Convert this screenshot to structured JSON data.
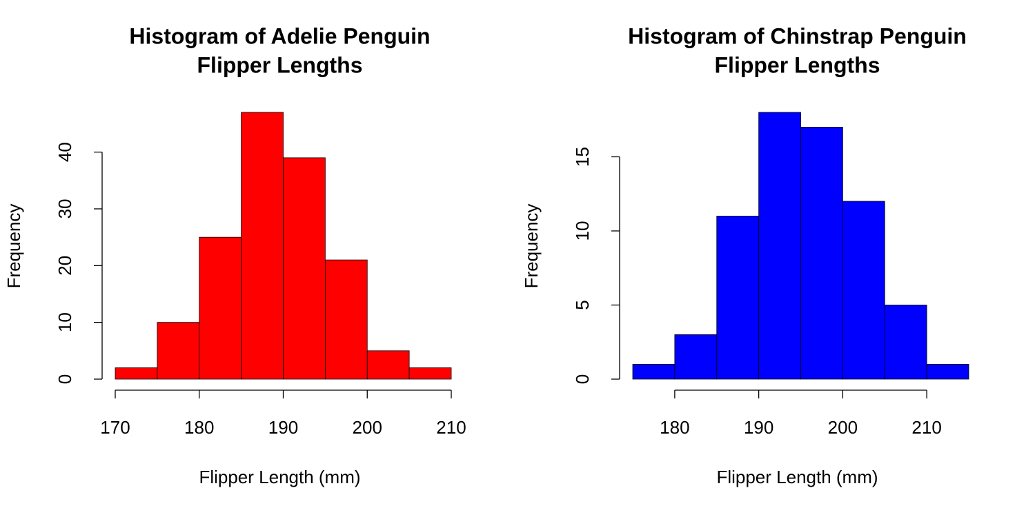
{
  "chart_data": [
    {
      "type": "histogram",
      "title": [
        "Histogram of Adelie Penguin",
        "Flipper Lengths"
      ],
      "xlabel": "Flipper Length (mm)",
      "ylabel": "Frequency",
      "bins": [
        170,
        175,
        180,
        185,
        190,
        195,
        200,
        205,
        210
      ],
      "values": [
        2,
        10,
        25,
        47,
        39,
        21,
        5,
        2
      ],
      "color": "#ff0000",
      "xlim": [
        170,
        210
      ],
      "ylim": [
        0,
        47
      ],
      "xticks": [
        170,
        180,
        190,
        200,
        210
      ],
      "yticks": [
        0,
        10,
        20,
        30,
        40
      ]
    },
    {
      "type": "histogram",
      "title": [
        "Histogram of Chinstrap Penguin",
        "Flipper Lengths"
      ],
      "xlabel": "Flipper Length (mm)",
      "ylabel": "Frequency",
      "bins": [
        175,
        180,
        185,
        190,
        195,
        200,
        205,
        210,
        215
      ],
      "values": [
        1,
        3,
        11,
        18,
        17,
        12,
        5,
        1
      ],
      "color": "#0000ff",
      "xlim": [
        175,
        215
      ],
      "ylim": [
        0,
        18
      ],
      "xticks": [
        180,
        190,
        200,
        210
      ],
      "yticks": [
        0,
        5,
        10,
        15
      ]
    }
  ]
}
